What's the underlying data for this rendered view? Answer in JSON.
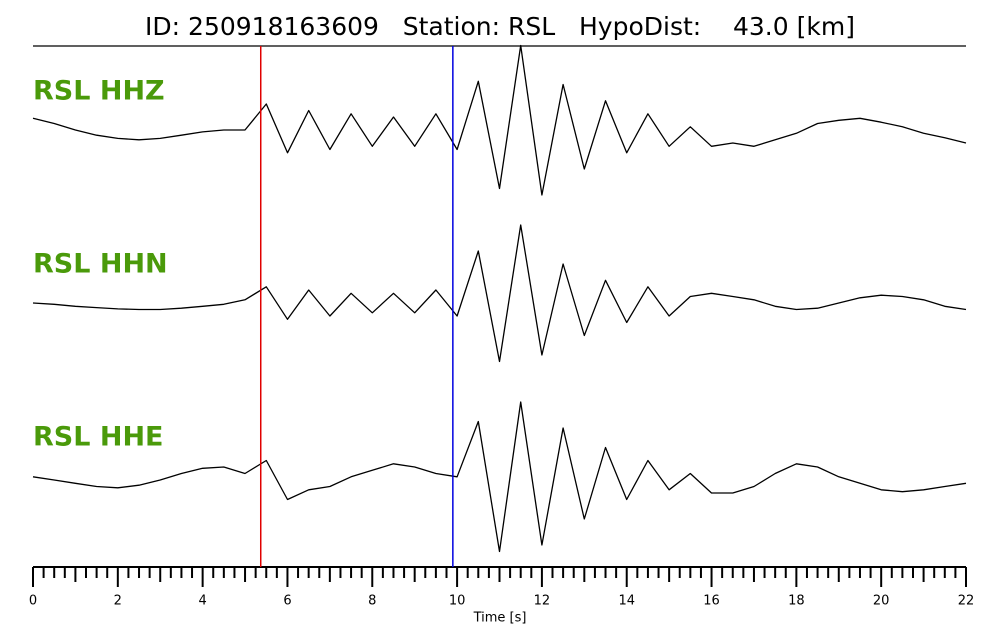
{
  "chart_data": {
    "type": "line",
    "title": "ID: 250918163609   Station: RSL   HypoDist:    43.0 [km]",
    "x_label": "Time [s]",
    "xlim": [
      0,
      22
    ],
    "xticks": [
      0,
      2,
      4,
      6,
      8,
      10,
      12,
      14,
      16,
      18,
      20,
      22
    ],
    "x": [
      0,
      0.5,
      1,
      1.5,
      2,
      2.5,
      3,
      3.5,
      4,
      4.5,
      5,
      5.5,
      6,
      6.5,
      7,
      7.5,
      8,
      8.5,
      9,
      9.5,
      10,
      10.5,
      11,
      11.5,
      12,
      12.5,
      13,
      13.5,
      14,
      14.5,
      15,
      15.5,
      16,
      16.5,
      17,
      17.5,
      18,
      18.5,
      19,
      19.5,
      20,
      20.5,
      21,
      21.5,
      22
    ],
    "series": [
      {
        "name": "RSL HHZ",
        "color": "#000000",
        "values": [
          0.18,
          0.1,
          0.0,
          -0.08,
          -0.13,
          -0.15,
          -0.13,
          -0.08,
          -0.03,
          0.0,
          0.0,
          0.4,
          -0.35,
          0.3,
          -0.3,
          0.25,
          -0.25,
          0.2,
          -0.25,
          0.25,
          -0.3,
          0.75,
          -0.9,
          1.3,
          -1.0,
          0.7,
          -0.6,
          0.45,
          -0.35,
          0.25,
          -0.25,
          0.05,
          -0.25,
          -0.2,
          -0.25,
          -0.15,
          -0.05,
          0.1,
          0.15,
          0.18,
          0.12,
          0.05,
          -0.05,
          -0.12,
          -0.2
        ]
      },
      {
        "name": "RSL HHN",
        "color": "#000000",
        "values": [
          0.0,
          -0.02,
          -0.05,
          -0.07,
          -0.09,
          -0.1,
          -0.1,
          -0.08,
          -0.05,
          -0.02,
          0.05,
          0.25,
          -0.25,
          0.2,
          -0.2,
          0.15,
          -0.15,
          0.15,
          -0.15,
          0.2,
          -0.2,
          0.8,
          -0.9,
          1.2,
          -0.8,
          0.6,
          -0.5,
          0.35,
          -0.3,
          0.25,
          -0.2,
          0.1,
          0.15,
          0.1,
          0.05,
          -0.05,
          -0.1,
          -0.08,
          0.0,
          0.08,
          0.12,
          0.1,
          0.05,
          -0.05,
          -0.1
        ]
      },
      {
        "name": "RSL HHE",
        "color": "#000000",
        "values": [
          0.05,
          0.0,
          -0.05,
          -0.1,
          -0.12,
          -0.08,
          0.0,
          0.1,
          0.18,
          0.2,
          0.1,
          0.3,
          -0.3,
          -0.15,
          -0.1,
          0.05,
          0.15,
          0.25,
          0.2,
          0.1,
          0.05,
          0.9,
          -1.1,
          1.2,
          -1.0,
          0.8,
          -0.6,
          0.5,
          -0.3,
          0.3,
          -0.15,
          0.1,
          -0.2,
          -0.2,
          -0.1,
          0.1,
          0.25,
          0.2,
          0.05,
          -0.05,
          -0.15,
          -0.18,
          -0.15,
          -0.1,
          -0.05
        ]
      }
    ],
    "label_color": "#4a9a0a",
    "picks": [
      {
        "time": 5.37,
        "color": "#e00000"
      },
      {
        "time": 9.9,
        "color": "#0000e0"
      }
    ]
  }
}
